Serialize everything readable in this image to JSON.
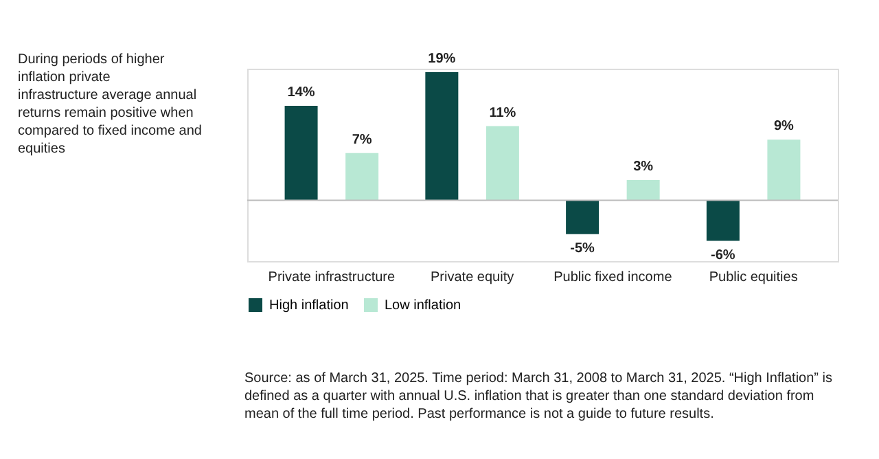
{
  "chart_data": {
    "type": "bar",
    "categories": [
      "Private infrastructure",
      "Private equity",
      "Public fixed income",
      "Public equities"
    ],
    "series": [
      {
        "name": "High inflation",
        "color": "#0b4a47",
        "values": [
          14,
          19,
          -5,
          -6
        ],
        "value_labels": [
          "14%",
          "19%",
          "-5%",
          "-6%"
        ]
      },
      {
        "name": "Low inflation",
        "color": "#b8e8d4",
        "values": [
          7,
          11,
          3,
          9
        ],
        "value_labels": [
          "7%",
          "11%",
          "3%",
          "9%"
        ]
      }
    ],
    "legend": "bottom",
    "annotations": [
      "During periods of higher inflation private infrastructure average annual returns remain positive when compared to fixed income and equities",
      "Source: as of March 31, 2025. Time period: March 31, 2008 to March 31, 2025. “High Inflation” is defined as a quarter with annual U.S. inflation that is greater than one standard deviation from mean of the full time period. Past performance is not a guide to future results."
    ]
  }
}
